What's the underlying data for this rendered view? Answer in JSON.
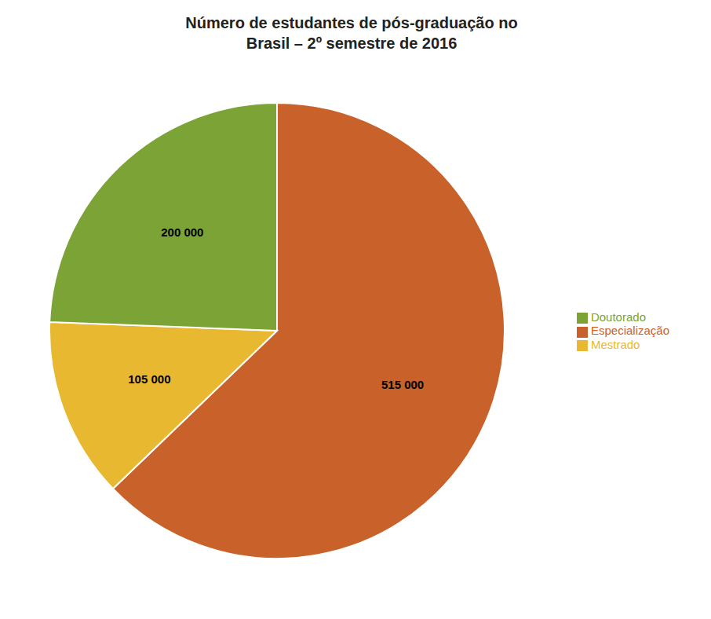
{
  "chart_data": {
    "type": "pie",
    "title": "Número de estudantes de pós-graduação no\nBrasil – 2º semestre de 2016",
    "categories": [
      "Especialização",
      "Mestrado",
      "Doutorado"
    ],
    "values": [
      515000,
      105000,
      200000
    ],
    "value_labels": [
      "515 000",
      "105 000",
      "200 000"
    ],
    "colors": [
      "#C8622A",
      "#E8B830",
      "#7BA335"
    ],
    "data_labels": true,
    "legend": "right"
  }
}
